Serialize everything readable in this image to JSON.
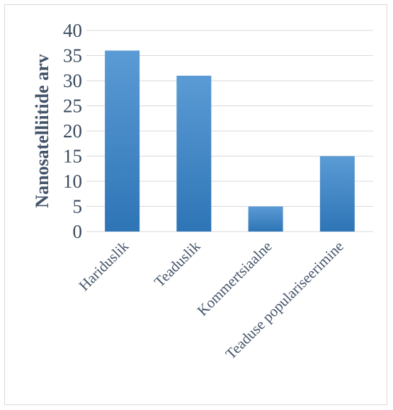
{
  "chart_data": {
    "type": "bar",
    "title": "",
    "xlabel": "",
    "ylabel": "Nanosatelliitide arv",
    "categories": [
      "Hariduslik",
      "Teaduslik",
      "Kommertsiaalne",
      "Teaduse populariseerimine"
    ],
    "values": [
      36,
      31,
      5,
      15
    ],
    "ylim": [
      0,
      40
    ],
    "yticks": [
      "0",
      "5",
      "10",
      "15",
      "20",
      "25",
      "30",
      "35",
      "40"
    ],
    "grid": true,
    "legend": "none",
    "colors": {
      "bar_top": "#5b9bd5",
      "bar_bottom": "#2e75b6",
      "text": "#44546a",
      "grid": "#d9d9d9"
    }
  }
}
